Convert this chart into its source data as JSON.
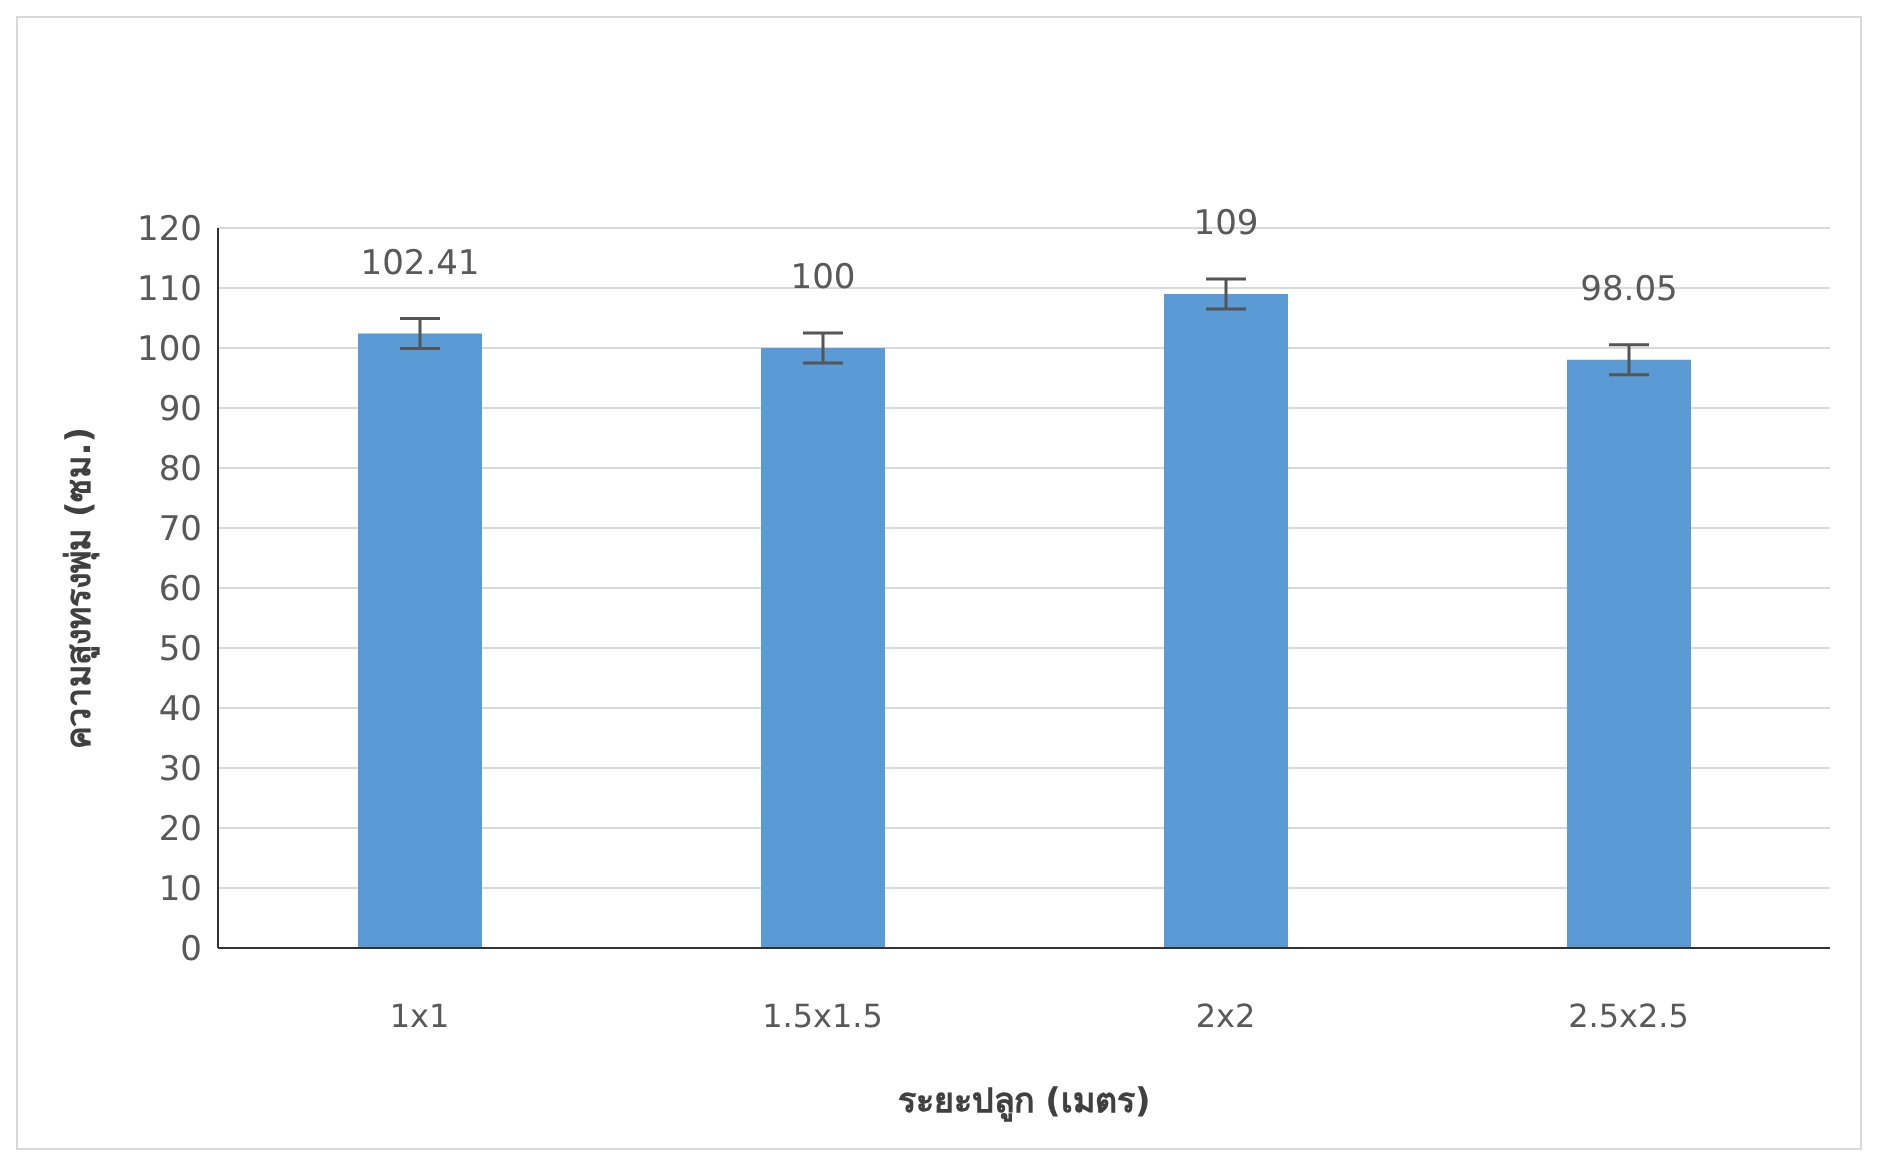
{
  "chart_data": {
    "type": "bar",
    "xlabel": "ระยะปลูก (เมตร)",
    "ylabel": "ความสูงทรงพุ่ม (ซม.)",
    "categories": [
      "1x1",
      "1.5x1.5",
      "2x2",
      "2.5x2.5"
    ],
    "values": [
      102.41,
      100,
      109,
      98.05
    ],
    "errors": [
      2.5,
      2.5,
      2.5,
      2.5
    ],
    "color": "#5b9bd5",
    "ylim": [
      0,
      120
    ],
    "yticks": [
      0,
      10,
      20,
      30,
      40,
      50,
      60,
      70,
      80,
      90,
      100,
      110,
      120
    ],
    "grid": "y",
    "data_labels": true
  }
}
